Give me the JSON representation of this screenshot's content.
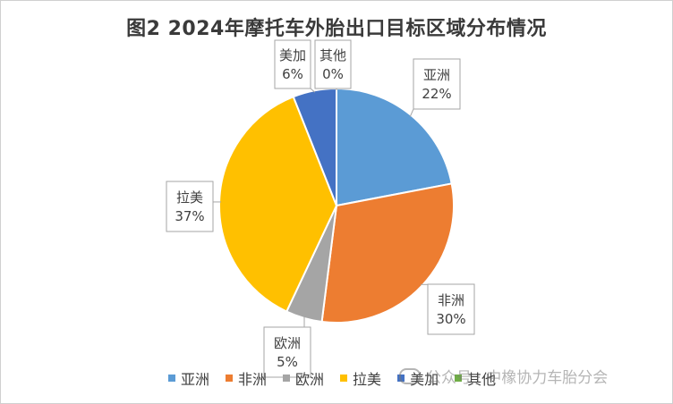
{
  "chart_data": {
    "type": "pie",
    "title": "图2 2024年摩托车外胎出口目标区域分布情况",
    "slices": [
      {
        "label": "亚洲",
        "value": 22,
        "value_label": "22%",
        "color": "#5b9bd5"
      },
      {
        "label": "非洲",
        "value": 30,
        "value_label": "30%",
        "color": "#ed7d31"
      },
      {
        "label": "欧洲",
        "value": 5,
        "value_label": "5%",
        "color": "#a5a5a5"
      },
      {
        "label": "拉美",
        "value": 37,
        "value_label": "37%",
        "color": "#ffc000"
      },
      {
        "label": "美加",
        "value": 6,
        "value_label": "6%",
        "color": "#4472c4"
      },
      {
        "label": "其他",
        "value": 0,
        "value_label": "0%",
        "color": "#70ad47"
      }
    ],
    "legend_position": "bottom"
  },
  "watermark": "公众号 · 中橡协力车胎分会"
}
